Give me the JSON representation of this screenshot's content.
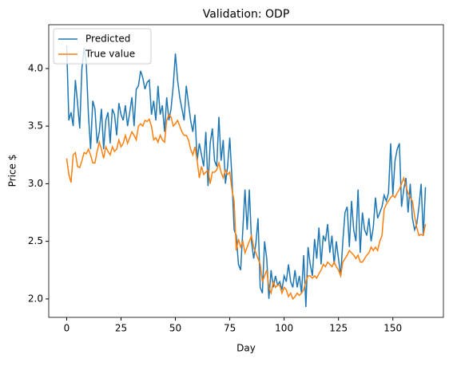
{
  "chart_data": {
    "type": "line",
    "title": "Validation: ODP",
    "xlabel": "Day",
    "ylabel": "Price $",
    "x": [
      0,
      1,
      2,
      3,
      4,
      5,
      6,
      7,
      8,
      9,
      10,
      11,
      12,
      13,
      14,
      15,
      16,
      17,
      18,
      19,
      20,
      21,
      22,
      23,
      24,
      25,
      26,
      27,
      28,
      29,
      30,
      31,
      32,
      33,
      34,
      35,
      36,
      37,
      38,
      39,
      40,
      41,
      42,
      43,
      44,
      45,
      46,
      47,
      48,
      49,
      50,
      51,
      52,
      53,
      54,
      55,
      56,
      57,
      58,
      59,
      60,
      61,
      62,
      63,
      64,
      65,
      66,
      67,
      68,
      69,
      70,
      71,
      72,
      73,
      74,
      75,
      76,
      77,
      78,
      79,
      80,
      81,
      82,
      83,
      84,
      85,
      86,
      87,
      88,
      89,
      90,
      91,
      92,
      93,
      94,
      95,
      96,
      97,
      98,
      99,
      100,
      101,
      102,
      103,
      104,
      105,
      106,
      107,
      108,
      109,
      110,
      111,
      112,
      113,
      114,
      115,
      116,
      117,
      118,
      119,
      120,
      121,
      122,
      123,
      124,
      125,
      126,
      127,
      128,
      129,
      130,
      131,
      132,
      133,
      134,
      135,
      136,
      137,
      138,
      139,
      140,
      141,
      142,
      143,
      144,
      145,
      146,
      147,
      148,
      149,
      150,
      151,
      152,
      153,
      154,
      155,
      156,
      157,
      158,
      159,
      160,
      161,
      162,
      163,
      164,
      165
    ],
    "series": [
      {
        "name": "Predicted",
        "color": "#1f77b4",
        "values": [
          4.2,
          3.55,
          3.62,
          3.5,
          3.9,
          3.7,
          3.48,
          4.0,
          4.18,
          4.05,
          3.6,
          3.3,
          3.72,
          3.65,
          3.35,
          3.45,
          3.65,
          3.3,
          3.55,
          3.62,
          3.35,
          3.65,
          3.6,
          3.42,
          3.7,
          3.6,
          3.55,
          3.68,
          3.5,
          3.62,
          3.75,
          3.5,
          3.82,
          3.85,
          3.98,
          3.92,
          3.82,
          3.88,
          3.9,
          3.6,
          3.72,
          3.55,
          3.85,
          3.6,
          3.68,
          3.45,
          3.75,
          3.55,
          3.65,
          3.85,
          4.13,
          3.9,
          3.75,
          3.65,
          3.55,
          3.85,
          3.7,
          3.55,
          3.45,
          3.6,
          3.2,
          3.35,
          3.25,
          3.15,
          3.45,
          2.98,
          3.35,
          3.48,
          3.2,
          3.15,
          3.58,
          3.2,
          3.38,
          3.0,
          3.15,
          3.4,
          3.05,
          2.6,
          2.55,
          2.3,
          2.25,
          2.6,
          2.95,
          2.6,
          2.95,
          2.5,
          2.35,
          2.48,
          2.7,
          2.1,
          2.05,
          2.5,
          2.35,
          2.0,
          2.25,
          2.1,
          2.2,
          2.12,
          2.15,
          2.08,
          2.2,
          2.15,
          2.3,
          2.15,
          2.1,
          2.25,
          2.1,
          2.2,
          2.05,
          2.38,
          1.93,
          2.45,
          2.3,
          2.2,
          2.52,
          2.35,
          2.62,
          2.3,
          2.55,
          2.5,
          2.65,
          2.4,
          2.55,
          2.3,
          2.5,
          2.35,
          2.2,
          2.5,
          2.75,
          2.8,
          2.45,
          2.85,
          2.6,
          2.5,
          2.95,
          2.4,
          2.75,
          2.6,
          2.55,
          2.7,
          2.5,
          2.62,
          2.88,
          2.7,
          2.75,
          2.8,
          2.9,
          2.85,
          2.92,
          3.35,
          2.9,
          3.2,
          3.3,
          3.35,
          2.8,
          2.95,
          3.05,
          2.75,
          3.0,
          2.7,
          2.6,
          2.65,
          2.8,
          3.0,
          2.55,
          2.97
        ]
      },
      {
        "name": "True value",
        "color": "#ff7f0e",
        "values": [
          3.22,
          3.08,
          3.01,
          3.25,
          3.27,
          3.15,
          3.14,
          3.2,
          3.27,
          3.26,
          3.3,
          3.25,
          3.18,
          3.18,
          3.28,
          3.36,
          3.3,
          3.22,
          3.32,
          3.28,
          3.25,
          3.32,
          3.28,
          3.3,
          3.38,
          3.32,
          3.35,
          3.42,
          3.35,
          3.4,
          3.45,
          3.42,
          3.38,
          3.5,
          3.52,
          3.5,
          3.55,
          3.54,
          3.56,
          3.5,
          3.38,
          3.4,
          3.36,
          3.42,
          3.38,
          3.36,
          3.55,
          3.6,
          3.58,
          3.5,
          3.52,
          3.55,
          3.5,
          3.45,
          3.42,
          3.42,
          3.38,
          3.3,
          3.25,
          3.32,
          3.2,
          3.05,
          3.15,
          3.08,
          3.1,
          3.12,
          3.0,
          3.1,
          3.1,
          3.12,
          3.18,
          3.1,
          3.05,
          3.12,
          3.08,
          3.1,
          2.95,
          2.85,
          2.42,
          2.52,
          2.45,
          2.5,
          2.4,
          2.45,
          2.5,
          2.55,
          2.45,
          2.4,
          2.35,
          2.3,
          2.15,
          2.2,
          2.25,
          2.1,
          2.05,
          2.15,
          2.1,
          2.12,
          2.12,
          2.05,
          2.1,
          2.08,
          2.02,
          2.05,
          2.0,
          2.02,
          2.05,
          2.03,
          2.05,
          2.08,
          2.15,
          2.2,
          2.2,
          2.18,
          2.2,
          2.18,
          2.22,
          2.25,
          2.3,
          2.28,
          2.32,
          2.3,
          2.28,
          2.32,
          2.28,
          2.25,
          2.2,
          2.32,
          2.35,
          2.38,
          2.42,
          2.4,
          2.38,
          2.35,
          2.38,
          2.32,
          2.32,
          2.35,
          2.38,
          2.4,
          2.45,
          2.42,
          2.45,
          2.42,
          2.5,
          2.55,
          2.78,
          2.82,
          2.85,
          2.88,
          2.9,
          2.88,
          2.92,
          2.95,
          3.0,
          3.05,
          2.98,
          2.92,
          2.88,
          2.85,
          2.72,
          2.62,
          2.55,
          2.56,
          2.55,
          2.65
        ]
      }
    ],
    "xlim": [
      -8.25,
      173.25
    ],
    "xticks": [
      0,
      25,
      50,
      75,
      100,
      125,
      150
    ],
    "ylim": [
      1.84,
      4.38
    ],
    "yticks": [
      {
        "value": 2.0,
        "label": "2.0"
      },
      {
        "value": 2.5,
        "label": "2.5"
      },
      {
        "value": 3.0,
        "label": "3.0"
      },
      {
        "value": 3.5,
        "label": "3.5"
      },
      {
        "value": 4.0,
        "label": "4.0"
      }
    ],
    "legend": "upper left",
    "grid": false
  }
}
